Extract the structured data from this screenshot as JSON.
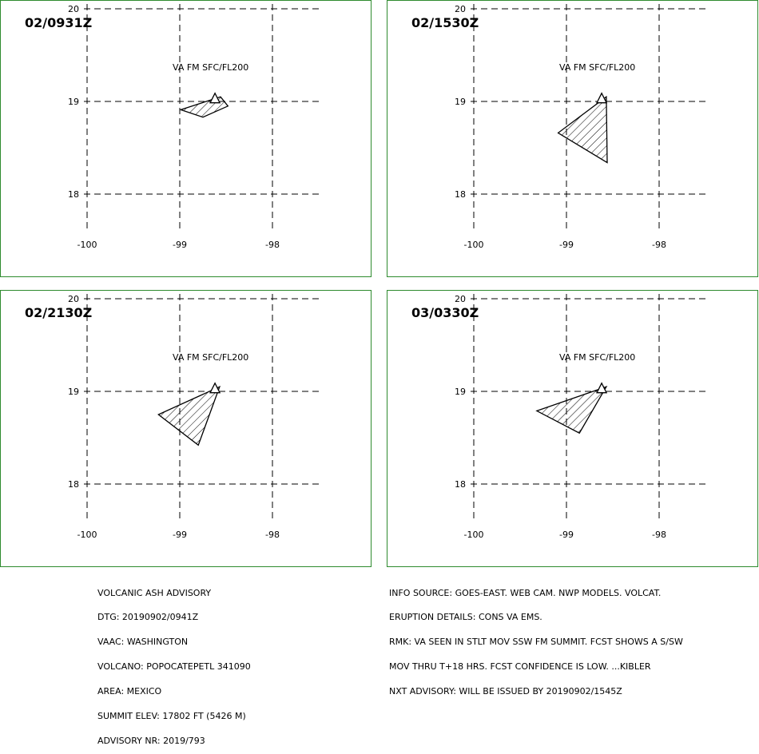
{
  "panels": [
    {
      "time": "02/0931Z",
      "label": "VA FM SFC/FL200",
      "polygon": [
        [
          -98.56,
          19.05
        ],
        [
          -98.48,
          18.95
        ],
        [
          -98.75,
          18.83
        ],
        [
          -98.99,
          18.91
        ]
      ]
    },
    {
      "time": "02/1530Z",
      "label": "VA FM SFC/FL200",
      "polygon": [
        [
          -98.57,
          19.05
        ],
        [
          -98.56,
          18.34
        ],
        [
          -99.09,
          18.66
        ]
      ]
    },
    {
      "time": "02/2130Z",
      "label": "VA FM SFC/FL200",
      "polygon": [
        [
          -98.57,
          19.05
        ],
        [
          -98.8,
          18.42
        ],
        [
          -99.23,
          18.75
        ]
      ]
    },
    {
      "time": "03/0330Z",
      "label": "VA FM SFC/FL200",
      "polygon": [
        [
          -98.57,
          19.05
        ],
        [
          -98.86,
          18.55
        ],
        [
          -99.32,
          18.79
        ]
      ]
    }
  ],
  "axes": {
    "lon_ticks": [
      "-100",
      "-99",
      "-98"
    ],
    "lat_ticks": [
      "20",
      "19",
      "18"
    ],
    "lon_values": [
      -100,
      -99,
      -98
    ],
    "lat_values": [
      20,
      19,
      18
    ]
  },
  "volcano": {
    "name": "POPOCATEPETL",
    "lon": -98.62,
    "lat": 19.02
  },
  "advisory_left": [
    "VOLCANIC ASH ADVISORY",
    "DTG: 20190902/0941Z",
    "VAAC: WASHINGTON",
    "VOLCANO: POPOCATEPETL 341090",
    "AREA: MEXICO",
    "SUMMIT ELEV: 17802 FT (5426 M)",
    "ADVISORY NR: 2019/793"
  ],
  "advisory_right": [
    "INFO SOURCE: GOES-EAST. WEB CAM. NWP MODELS. VOLCAT.",
    "ERUPTION DETAILS: CONS VA EMS.",
    "RMK: VA SEEN IN STLT MOV SSW FM SUMMIT. FCST SHOWS A S/SW",
    "MOV THRU T+18 HRS. FCST CONFIDENCE IS LOW. ...KIBLER",
    "NXT ADVISORY: WILL BE ISSUED BY 20190902/1545Z"
  ],
  "colors": {
    "frame": "#2e8b2e",
    "lines": "#000000",
    "background": "#ffffff"
  }
}
